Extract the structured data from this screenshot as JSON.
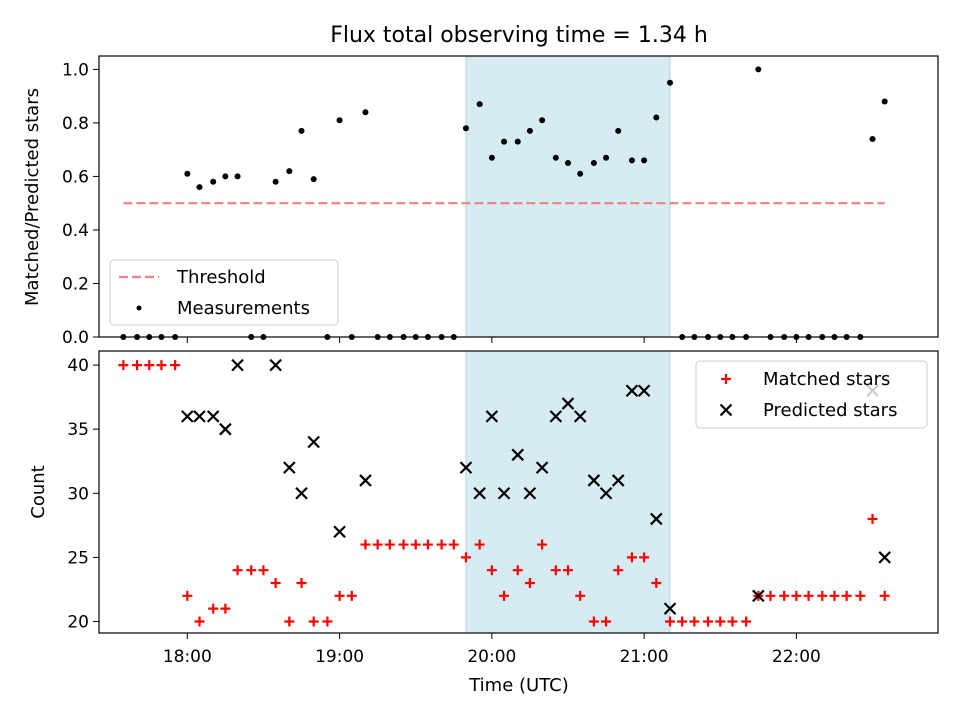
{
  "chart_data": {
    "title": "Flux total observing time = 1.34 h",
    "xlabel": "Time (UTC)",
    "xlim_hours": [
      17.42,
      22.93
    ],
    "xticks": [
      {
        "value": 18,
        "label": "18:00"
      },
      {
        "value": 19,
        "label": "19:00"
      },
      {
        "value": 20,
        "label": "20:00"
      },
      {
        "value": 21,
        "label": "21:00"
      },
      {
        "value": 22,
        "label": "22:00"
      }
    ],
    "highlight_span": {
      "x0": 19.83,
      "x1": 21.17,
      "color": "#add8e6"
    },
    "panels": [
      {
        "type": "scatter",
        "ylabel": "Matched/Predicted stars",
        "ylim": [
          0,
          1.05
        ],
        "yticks": [
          {
            "value": 0.0,
            "label": "0.0"
          },
          {
            "value": 0.2,
            "label": "0.2"
          },
          {
            "value": 0.4,
            "label": "0.4"
          },
          {
            "value": 0.6,
            "label": "0.6"
          },
          {
            "value": 0.8,
            "label": "0.8"
          },
          {
            "value": 1.0,
            "label": "1.0"
          }
        ],
        "threshold": {
          "name": "Threshold",
          "value": 0.5,
          "x_range": [
            17.58,
            22.58
          ],
          "color": "#f08080"
        },
        "series": [
          {
            "name": "Measurements",
            "color": "#000000",
            "x": [
              17.58,
              17.67,
              17.75,
              17.83,
              17.92,
              18.0,
              18.08,
              18.17,
              18.25,
              18.33,
              18.42,
              18.5,
              18.58,
              18.67,
              18.75,
              18.83,
              18.92,
              19.0,
              19.08,
              19.17,
              19.25,
              19.33,
              19.42,
              19.5,
              19.58,
              19.67,
              19.75,
              19.83,
              19.92,
              20.0,
              20.08,
              20.17,
              20.25,
              20.33,
              20.42,
              20.5,
              20.58,
              20.67,
              20.75,
              20.83,
              20.92,
              21.0,
              21.08,
              21.17,
              21.25,
              21.33,
              21.42,
              21.5,
              21.58,
              21.67,
              21.75,
              21.83,
              21.92,
              22.0,
              22.08,
              22.17,
              22.25,
              22.33,
              22.42,
              22.5,
              22.58
            ],
            "y": [
              0,
              0,
              0,
              0,
              0,
              0.61,
              0.56,
              0.58,
              0.6,
              0.6,
              0,
              0,
              0.58,
              0.62,
              0.77,
              0.59,
              0,
              0.81,
              0,
              0.84,
              0,
              0,
              0,
              0,
              0,
              0,
              0,
              0.78,
              0.87,
              0.67,
              0.73,
              0.73,
              0.77,
              0.81,
              0.67,
              0.65,
              0.61,
              0.65,
              0.67,
              0.77,
              0.66,
              0.66,
              0.82,
              0.95,
              0,
              0,
              0,
              0,
              0,
              0,
              1.0,
              0,
              0,
              0,
              0,
              0,
              0,
              0,
              0,
              0.74,
              0.88
            ]
          }
        ],
        "legend": {
          "placement": "lower-left",
          "entries": [
            "Threshold",
            "Measurements"
          ]
        }
      },
      {
        "type": "scatter",
        "ylabel": "Count",
        "ylim": [
          19.1,
          41.1
        ],
        "yticks": [
          {
            "value": 20,
            "label": "20"
          },
          {
            "value": 25,
            "label": "25"
          },
          {
            "value": 30,
            "label": "30"
          },
          {
            "value": 35,
            "label": "35"
          },
          {
            "value": 40,
            "label": "40"
          }
        ],
        "series": [
          {
            "name": "Matched stars",
            "marker": "+",
            "color": "#ff0000",
            "x": [
              17.58,
              17.67,
              17.75,
              17.83,
              17.92,
              18.0,
              18.08,
              18.17,
              18.25,
              18.33,
              18.42,
              18.5,
              18.58,
              18.67,
              18.75,
              18.83,
              18.92,
              19.0,
              19.08,
              19.17,
              19.25,
              19.33,
              19.42,
              19.5,
              19.58,
              19.67,
              19.75,
              19.83,
              19.92,
              20.0,
              20.08,
              20.17,
              20.25,
              20.33,
              20.42,
              20.5,
              20.58,
              20.67,
              20.75,
              20.83,
              20.92,
              21.0,
              21.08,
              21.17,
              21.25,
              21.33,
              21.42,
              21.5,
              21.58,
              21.67,
              21.75,
              21.83,
              21.92,
              22.0,
              22.08,
              22.17,
              22.25,
              22.33,
              22.42,
              22.5,
              22.58
            ],
            "y": [
              40,
              40,
              40,
              40,
              40,
              22,
              20,
              21,
              21,
              24,
              24,
              24,
              23,
              20,
              23,
              20,
              20,
              22,
              22,
              26,
              26,
              26,
              26,
              26,
              26,
              26,
              26,
              25,
              26,
              24,
              22,
              24,
              23,
              26,
              24,
              24,
              22,
              20,
              20,
              24,
              25,
              25,
              23,
              20,
              20,
              20,
              20,
              20,
              20,
              20,
              22,
              22,
              22,
              22,
              22,
              22,
              22,
              22,
              22,
              28,
              22
            ]
          },
          {
            "name": "Predicted stars",
            "marker": "x",
            "color": "#000000",
            "x": [
              18.0,
              18.08,
              18.17,
              18.25,
              18.33,
              18.58,
              18.67,
              18.75,
              18.83,
              19.0,
              19.17,
              19.83,
              19.92,
              20.0,
              20.08,
              20.17,
              20.25,
              20.33,
              20.42,
              20.5,
              20.58,
              20.67,
              20.75,
              20.83,
              20.92,
              21.0,
              21.08,
              21.17,
              21.75,
              22.5,
              22.58
            ],
            "y": [
              36,
              36,
              36,
              35,
              40,
              40,
              32,
              30,
              34,
              27,
              31,
              32,
              30,
              36,
              30,
              33,
              30,
              32,
              36,
              37,
              36,
              31,
              30,
              31,
              38,
              38,
              28,
              21,
              22,
              38,
              25
            ]
          }
        ],
        "legend": {
          "placement": "upper-right",
          "entries": [
            "Matched stars",
            "Predicted stars"
          ]
        }
      }
    ]
  }
}
